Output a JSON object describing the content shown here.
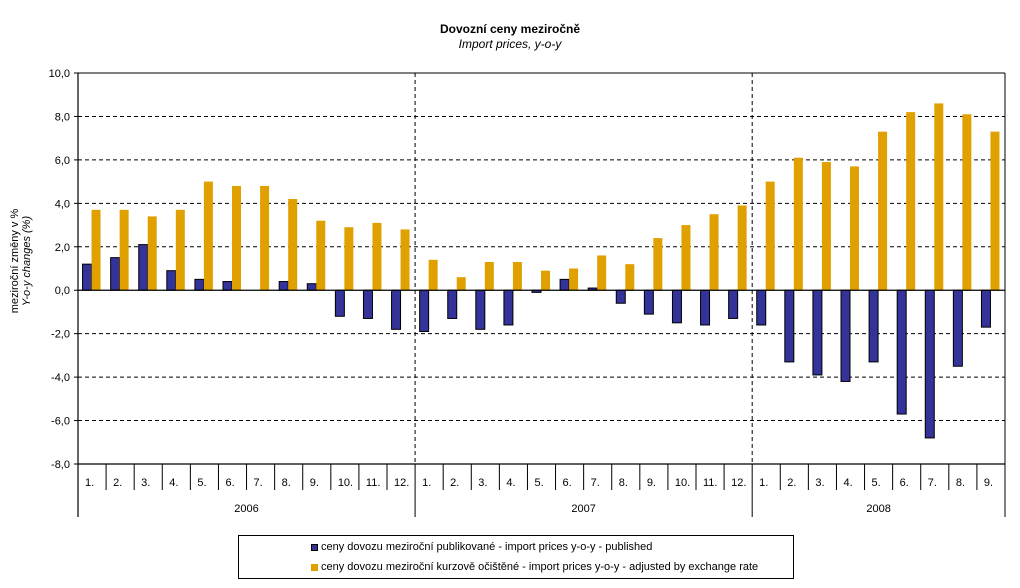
{
  "chart_data": {
    "type": "bar",
    "title": "Dovozní ceny meziročně",
    "subtitle": "Import prices, y-o-y",
    "ylabel_line1": "meziroční změny v %",
    "ylabel_line2": "Y-o-y changes (%)",
    "xlabel": "",
    "ylim": [
      -8,
      10
    ],
    "ytick_step": 2,
    "yticks": [
      "10,0",
      "8,0",
      "6,0",
      "4,0",
      "2,0",
      "0,0",
      "-2,0",
      "-4,0",
      "-6,0",
      "-8,0"
    ],
    "grid": "horizontal-dashed",
    "legend_position": "bottom",
    "groups": [
      {
        "label": "2006",
        "categories": [
          "1.",
          "2.",
          "3.",
          "4.",
          "5.",
          "6.",
          "7.",
          "8.",
          "9.",
          "10.",
          "11.",
          "12."
        ]
      },
      {
        "label": "2007",
        "categories": [
          "1.",
          "2.",
          "3.",
          "4.",
          "5.",
          "6.",
          "7.",
          "8.",
          "9.",
          "10.",
          "11.",
          "12."
        ]
      },
      {
        "label": "2008",
        "categories": [
          "1.",
          "2.",
          "3.",
          "4.",
          "5.",
          "6.",
          "7.",
          "8.",
          "9."
        ]
      }
    ],
    "series": [
      {
        "name": "ceny dovozu meziroční publikované - import prices y-o-y - published",
        "color": "#333399",
        "values": [
          1.2,
          1.5,
          2.1,
          0.9,
          0.5,
          0.4,
          0.0,
          0.4,
          0.3,
          -1.2,
          -1.3,
          -1.8,
          -1.9,
          -1.3,
          -1.8,
          -1.6,
          -0.1,
          0.5,
          0.1,
          -0.6,
          -1.1,
          -1.5,
          -1.6,
          -1.3,
          -1.6,
          -3.3,
          -3.9,
          -4.2,
          -3.3,
          -5.7,
          -6.8,
          -3.5,
          -1.7
        ]
      },
      {
        "name": "ceny dovozu meziroční kurzově očištěné - import prices y-o-y - adjusted by exchange rate",
        "color": "#E0A000",
        "values": [
          3.7,
          3.7,
          3.4,
          3.7,
          5.0,
          4.8,
          4.8,
          4.2,
          3.2,
          2.9,
          3.1,
          2.8,
          1.4,
          0.6,
          1.3,
          1.3,
          0.9,
          1.0,
          1.6,
          1.2,
          2.4,
          3.0,
          3.5,
          3.9,
          5.0,
          6.1,
          5.9,
          5.7,
          7.3,
          8.2,
          8.6,
          8.1,
          7.3
        ]
      }
    ]
  }
}
